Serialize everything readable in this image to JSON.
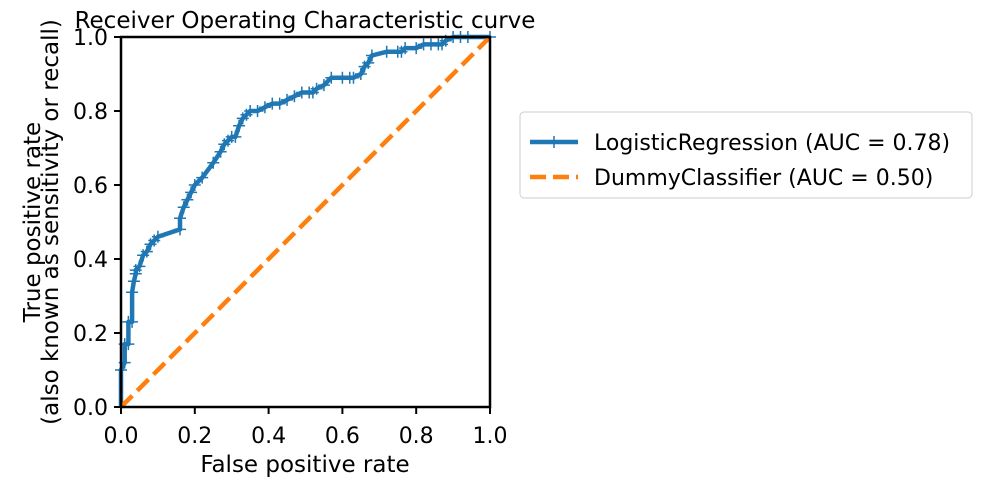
{
  "chart_data": {
    "type": "line",
    "title": "Receiver Operating Characteristic curve",
    "xlabel": "False positive rate",
    "ylabel_line1": "True positive rate",
    "ylabel_line2": "(also known as sensitivity or recall)",
    "xlim": [
      0.0,
      1.0
    ],
    "ylim": [
      0.0,
      1.0
    ],
    "xticks": [
      "0.0",
      "0.2",
      "0.4",
      "0.6",
      "0.8",
      "1.0"
    ],
    "yticks": [
      "0.0",
      "0.2",
      "0.4",
      "0.6",
      "0.8",
      "1.0"
    ],
    "grid": false,
    "legend_position": "right, outside plot",
    "series": [
      {
        "name": "LogisticRegression (AUC = 0.78)",
        "color": "#1f77b4",
        "style": "solid",
        "marker": "plus",
        "x": [
          0.0,
          0.0,
          0.01,
          0.01,
          0.02,
          0.02,
          0.03,
          0.03,
          0.035,
          0.04,
          0.04,
          0.05,
          0.06,
          0.07,
          0.08,
          0.09,
          0.1,
          0.16,
          0.16,
          0.17,
          0.18,
          0.19,
          0.2,
          0.22,
          0.25,
          0.27,
          0.28,
          0.29,
          0.3,
          0.31,
          0.32,
          0.33,
          0.34,
          0.35,
          0.37,
          0.39,
          0.41,
          0.43,
          0.45,
          0.47,
          0.49,
          0.51,
          0.52,
          0.53,
          0.55,
          0.57,
          0.6,
          0.62,
          0.63,
          0.65,
          0.66,
          0.67,
          0.68,
          0.72,
          0.75,
          0.76,
          0.77,
          0.8,
          0.82,
          0.84,
          0.86,
          0.87,
          0.88,
          0.9,
          0.92,
          0.94,
          1.0
        ],
        "y": [
          0.0,
          0.1,
          0.12,
          0.17,
          0.17,
          0.23,
          0.23,
          0.31,
          0.34,
          0.36,
          0.37,
          0.38,
          0.41,
          0.42,
          0.44,
          0.45,
          0.46,
          0.48,
          0.51,
          0.54,
          0.56,
          0.58,
          0.6,
          0.62,
          0.66,
          0.69,
          0.71,
          0.72,
          0.73,
          0.73,
          0.76,
          0.78,
          0.79,
          0.8,
          0.8,
          0.81,
          0.82,
          0.82,
          0.83,
          0.84,
          0.85,
          0.85,
          0.85,
          0.86,
          0.87,
          0.89,
          0.89,
          0.89,
          0.89,
          0.9,
          0.92,
          0.93,
          0.95,
          0.96,
          0.96,
          0.96,
          0.97,
          0.97,
          0.98,
          0.98,
          0.98,
          0.98,
          0.99,
          1.0,
          1.0,
          1.0,
          1.0
        ]
      },
      {
        "name": "DummyClassifier (AUC = 0.50)",
        "color": "#ff7f0e",
        "style": "dashed",
        "marker": "none",
        "x": [
          0.0,
          1.0
        ],
        "y": [
          0.0,
          1.0
        ]
      }
    ]
  }
}
